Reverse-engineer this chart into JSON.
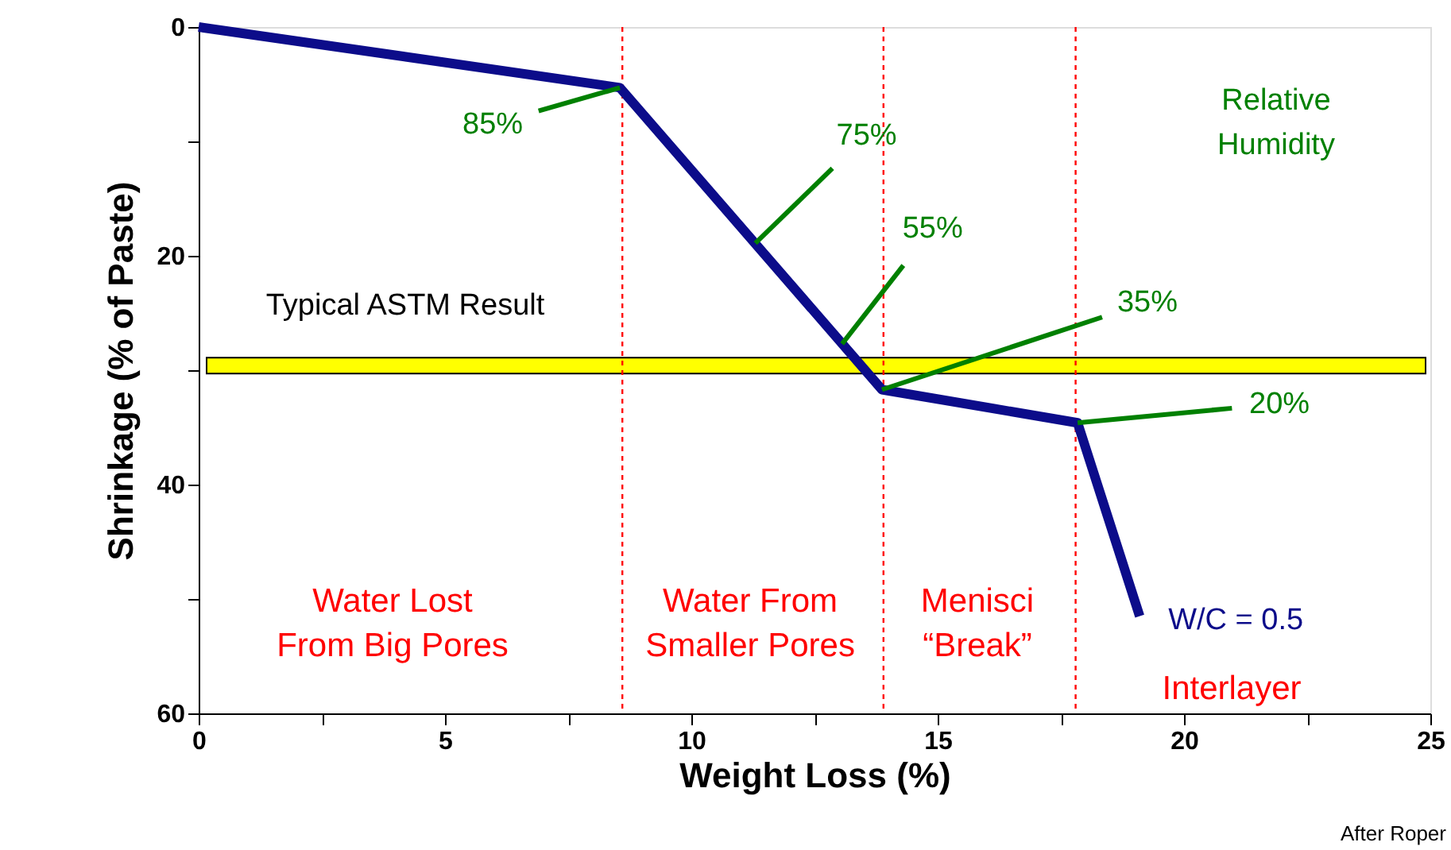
{
  "chart_data": {
    "type": "line",
    "xlabel": "Weight Loss (%)",
    "ylabel": "Shrinkage (% of Paste)",
    "series": [
      {
        "name": "W/C = 0.5",
        "color": "#0c0c8a",
        "x": [
          0,
          8.55,
          13.87,
          17.84,
          19.1
        ],
        "values": [
          0,
          5.3,
          31.7,
          34.6,
          51.5
        ]
      }
    ],
    "xlim": [
      0,
      25
    ],
    "ylim": [
      60,
      0
    ],
    "xticks": [
      0,
      {
        "value": 2.5,
        "label": null
      },
      5,
      {
        "value": 7.5,
        "label": null
      },
      10,
      {
        "value": 12.5,
        "label": null
      },
      15,
      {
        "value": 17.5,
        "label": null
      },
      20,
      {
        "value": 22.5,
        "label": null
      },
      25
    ],
    "yticks": [
      0,
      {
        "value": 10,
        "label": null
      },
      20,
      {
        "value": 30,
        "label": null
      },
      40,
      {
        "value": 50,
        "label": null
      },
      60
    ],
    "ref_lines": [
      {
        "axis": "x",
        "value": 8.6,
        "color": "#ff0000",
        "line_style": "dotted"
      },
      {
        "axis": "x",
        "value": 13.9,
        "color": "#ff0000",
        "line_style": "dotted"
      },
      {
        "axis": "x",
        "value": 17.8,
        "color": "#ff0000",
        "line_style": "dotted"
      }
    ],
    "bands": [
      {
        "axis": "y",
        "from": 28.9,
        "to": 30.3,
        "label": "Typical ASTM Result",
        "color": "#ffff00"
      }
    ],
    "annotations": [
      {
        "text": "85%",
        "x": 8.55,
        "y": 5.3
      },
      {
        "text": "75%",
        "x": 11.3,
        "y": 18.9
      },
      {
        "text": "55%",
        "x": 13.06,
        "y": 27.7
      },
      {
        "text": "35%",
        "x": 13.87,
        "y": 31.7
      },
      {
        "text": "20%",
        "x": 17.84,
        "y": 34.6
      },
      "Water Lost\nFrom Big Pores",
      "Water From\nSmaller Pores",
      "Menisci\n“Break”",
      "Interlayer",
      "Relative\nHumidity",
      "After Roper"
    ],
    "grid": false,
    "line_style": "solid"
  }
}
